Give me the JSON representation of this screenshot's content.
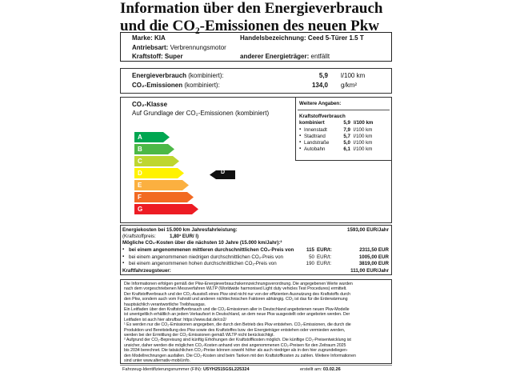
{
  "header": {
    "title_line1": "Information über den Energieverbrauch",
    "title_line2": "und die CO₂-Emissionen des neuen Pkw"
  },
  "vehicle": {
    "make_label": "Marke:",
    "make": "KIA",
    "trade_label": "Handelsbezeichnung:",
    "trade": "Ceed 5-Türer 1.5 T",
    "drive_label": "Antriebsart:",
    "drive": "Verbrennungsmotor",
    "fuel_label": "Kraftstoff:",
    "fuel": "Super",
    "other_label": "anderer Energieträger:",
    "other": "entfällt"
  },
  "consumption": {
    "energy_label": "Energieverbrauch",
    "energy_note": "(kombiniert):",
    "energy_value": "5,9",
    "energy_unit": "l/100 km",
    "co2_label": "CO₂-Emissionen",
    "co2_note": "(kombiniert):",
    "co2_value": "134,0",
    "co2_unit": "g/km²"
  },
  "co2_class": {
    "title": "CO₂-Klasse",
    "subtitle": "Auf Grundlage der CO₂-Emissionen (kombiniert)",
    "classes": [
      "A",
      "B",
      "C",
      "D",
      "E",
      "F",
      "G"
    ],
    "current": "D"
  },
  "further": {
    "title": "Weitere Angaben:",
    "fuel_title": "Kraftstoffverbrauch",
    "combined_label": "kombiniert",
    "combined_value": "5,9",
    "combined_unit": "l/100 km",
    "items": [
      {
        "label": "Innenstadt",
        "value": "7,9",
        "unit": "l/100 km"
      },
      {
        "label": "Stadtrand",
        "value": "5,7",
        "unit": "l/100 km"
      },
      {
        "label": "Landstraße",
        "value": "5,0",
        "unit": "l/100 km"
      },
      {
        "label": "Autobahn",
        "value": "6,1",
        "unit": "l/100 km"
      }
    ]
  },
  "costs": {
    "energy_label": "Energiekosten bei 15.000 km Jahresfahrleistung:",
    "energy_value": "1593,00 EUR/Jahr",
    "price_label": "(Kraftstoffpreis:",
    "price_value": "1,80¹ EUR/ l)",
    "co2_title": "Mögliche CO₂-Kosten über die nächsten 10 Jahre (15.000 km/Jahr):²",
    "scenarios": [
      {
        "text": "bei einem angenommenen mittleren durchschnittlichen CO₂-Preis von",
        "price": "115",
        "unit": "EUR/t:",
        "amount": "2311,50 EUR"
      },
      {
        "text": "bei einem angenommenen niedrigen durchschnittlichen CO₂-Preis von",
        "price": "50",
        "unit": "EUR/t:",
        "amount": "1005,00 EUR"
      },
      {
        "text": "bei einem angenommenen hohen durchschnittlichen CO₂-Preis von",
        "price": "190",
        "unit": "EUR/t:",
        "amount": "3819,00 EUR"
      }
    ],
    "tax_label": "Kraftfahrzeugsteuer:",
    "tax_value": "111,00 EUR/Jahr"
  },
  "footnotes": [
    "Die Informationen erfolgen gemäß der Pkw-Energieverbrauchskennzeichnungsverordnung. Die angegebenen Werte wurden",
    "nach dem vorgeschriebenen Messverfahren WLTP (Worldwide harmonised Light duty vehicles Test Procedures) ermittelt.",
    "Der Kraftstoffverbrauch und der CO₂-Ausstoß eines Pkw sind nicht nur von der effizienten Ausnutzung des Kraftstoffs durch",
    "den Pkw, sondern auch vom Fahrstil und anderen nichttechnischen Faktoren abhängig. CO₂ ist das für die Erderwärmung",
    "hauptsächlich verantwortliche Treibhausgas.",
    "Ein Leitfaden über den Kraftstoffverbrauch und die CO₂-Emissionen aller in Deutschland angebotenen neuen Pkw-Modelle",
    "ist unentgeltlich erhältlich an jedem Verkaufsort in Deutschland, an dem neue Pkw ausgestellt oder angeboten werden. Der",
    "Leitfaden ist auch hier abrufbar:    https://www.dat.de/co2/",
    "¹ Es werden nur die CO₂-Emissionen angegeben, die durch den Betrieb des Pkw entstehen. CO₂-Emissionen, die durch die",
    "Produktion und Bereitstellung des Pkw sowie des Kraftstoffes bzw. der Energieträger entstehen oder vermieden werden,",
    "werden bei der Ermittlung der CO₂-Emissionen gemäß WLTP nicht berücksichtigt.",
    "² Aufgrund der CO₂-Bepreisung sind künftig Erhöhungen der Kraftstoffkosten möglich. Die künftige CO₂-Preisentwicklung ist",
    "unsicher, daher werden die möglichen CO₂-Kosten anhand von drei angenommenen CO₂-Preisen für den Zeitraum  2025",
    "bis  2034  berechnet. Die tatsächlichen CO₂-Preise können sowohl höher als auch niedriger als in den hier zugrundeliegen-",
    "den Modellrechnungen ausfallen. Die CO₂-Kosten sind beim Tanken mit den Kraftstoffkosten zu zahlen. Weitere Informationen",
    "sind unter www.alternativ-mobil.info."
  ],
  "footer": {
    "fin_label": "Fahrzeug-Identifizierungsnummer (FIN):",
    "fin": "U5YH2515GSL225324",
    "created_label": "erstellt am:",
    "created": "03.02.26"
  }
}
